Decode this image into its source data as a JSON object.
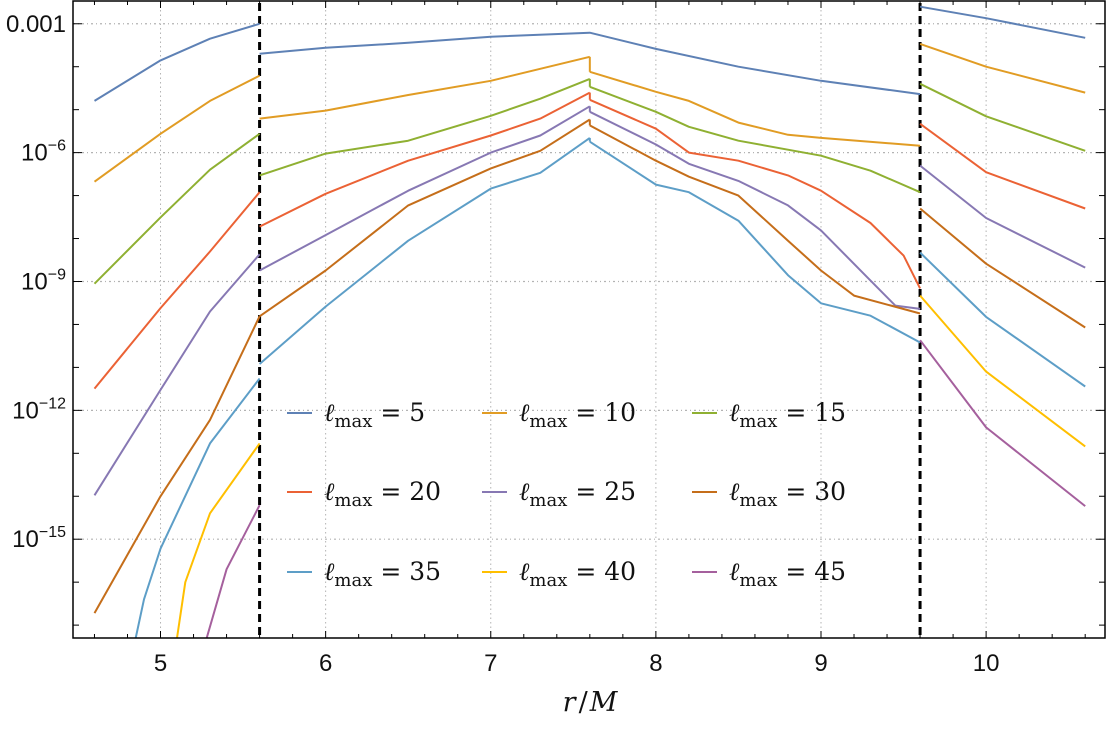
{
  "chart_data": {
    "type": "line",
    "title": "",
    "xlabel": "r/M",
    "xlabel_parts": {
      "r": "r",
      "slash": "/",
      "M": "M"
    },
    "ylabel": "",
    "yscale": "log",
    "xlim": [
      4.47,
      10.72
    ],
    "ylim_log10": [
      -17.3,
      -2.47
    ],
    "grid": true,
    "x_ticks": [
      {
        "value": 5,
        "label": "5"
      },
      {
        "value": 6,
        "label": "6"
      },
      {
        "value": 7,
        "label": "7"
      },
      {
        "value": 8,
        "label": "8"
      },
      {
        "value": 9,
        "label": "9"
      },
      {
        "value": 10,
        "label": "10"
      }
    ],
    "y_ticks": [
      {
        "log10": -3,
        "base": "0.001",
        "exp": ""
      },
      {
        "log10": -6,
        "base": "10",
        "exp": "−6"
      },
      {
        "log10": -9,
        "base": "10",
        "exp": "−9"
      },
      {
        "log10": -12,
        "base": "10",
        "exp": "−12"
      },
      {
        "log10": -15,
        "base": "10",
        "exp": "−15"
      }
    ],
    "vertical_dashed_lines": [
      5.6,
      9.6
    ],
    "legend_position": "lower-center",
    "series": [
      {
        "name": "ℓmax = 5",
        "symbol": "ℓ",
        "sub": "max",
        "rest": "= 5",
        "color": "#5e81b5",
        "segments": [
          [
            [
              4.6,
              1.6e-05
            ],
            [
              5.0,
              0.00014
            ],
            [
              5.3,
              0.00045
            ],
            [
              5.6,
              0.001
            ]
          ],
          [
            [
              5.6,
              0.0002
            ],
            [
              6.0,
              0.000275
            ],
            [
              6.5,
              0.00036
            ],
            [
              7.0,
              0.0005
            ],
            [
              7.6,
              0.00062
            ],
            [
              8.0,
              0.00026
            ],
            [
              8.5,
              0.0001
            ],
            [
              9.0,
              4.7e-05
            ],
            [
              9.6,
              2.3e-05
            ]
          ],
          [
            [
              9.6,
              0.0025
            ],
            [
              10.0,
              0.00135
            ],
            [
              10.6,
              0.00047
            ]
          ]
        ]
      },
      {
        "name": "ℓmax = 10",
        "symbol": "ℓ",
        "sub": "max",
        "rest": "= 10",
        "color": "#e19c24",
        "segments": [
          [
            [
              4.6,
              2.1e-07
            ],
            [
              5.0,
              2.75e-06
            ],
            [
              5.3,
              1.6e-05
            ],
            [
              5.6,
              6.2e-05
            ]
          ],
          [
            [
              5.6,
              6.2e-06
            ],
            [
              6.0,
              9.5e-06
            ],
            [
              6.5,
              2.2e-05
            ],
            [
              7.0,
              4.7e-05
            ],
            [
              7.6,
              0.00017
            ]
          ],
          [
            [
              7.6,
              7.6e-05
            ],
            [
              8.0,
              2.6e-05
            ],
            [
              8.2,
              1.6e-05
            ],
            [
              8.5,
              5e-06
            ],
            [
              8.8,
              2.6e-06
            ],
            [
              9.0,
              2.2e-06
            ],
            [
              9.6,
              1.45e-06
            ]
          ],
          [
            [
              9.6,
              0.00034
            ],
            [
              10.0,
              0.0001
            ],
            [
              10.6,
              2.5e-05
            ]
          ]
        ]
      },
      {
        "name": "ℓmax = 15",
        "symbol": "ℓ",
        "sub": "max",
        "rest": "= 15",
        "color": "#8fb032",
        "segments": [
          [
            [
              4.6,
              8.9e-10
            ],
            [
              5.0,
              3.1e-08
            ],
            [
              5.3,
              4e-07
            ],
            [
              5.6,
              2.75e-06
            ]
          ],
          [
            [
              5.6,
              2.95e-07
            ],
            [
              6.0,
              9.5e-07
            ],
            [
              6.5,
              1.9e-06
            ],
            [
              7.0,
              7.2e-06
            ],
            [
              7.3,
              1.8e-05
            ],
            [
              7.6,
              5.2e-05
            ]
          ],
          [
            [
              7.6,
              3.4e-05
            ],
            [
              8.0,
              8.9e-06
            ],
            [
              8.2,
              4e-06
            ],
            [
              8.5,
              1.9e-06
            ],
            [
              9.0,
              8.5e-07
            ],
            [
              9.3,
              3.8e-07
            ],
            [
              9.6,
              1.2e-07
            ]
          ],
          [
            [
              9.6,
              4e-05
            ],
            [
              10.0,
              7e-06
            ],
            [
              10.6,
              1.1e-06
            ]
          ]
        ]
      },
      {
        "name": "ℓmax = 20",
        "symbol": "ℓ",
        "sub": "max",
        "rest": "= 20",
        "color": "#eb6235",
        "segments": [
          [
            [
              4.6,
              3.2e-12
            ],
            [
              5.0,
              2.4e-10
            ],
            [
              5.3,
              5e-09
            ],
            [
              5.6,
              1.2e-07
            ]
          ],
          [
            [
              5.6,
              1.9e-08
            ],
            [
              6.0,
              1.1e-07
            ],
            [
              6.5,
              6.5e-07
            ],
            [
              7.0,
              2.5e-06
            ],
            [
              7.3,
              6.2e-06
            ],
            [
              7.6,
              2.5e-05
            ]
          ],
          [
            [
              7.6,
              1.7e-05
            ],
            [
              8.0,
              3.6e-06
            ],
            [
              8.2,
              1e-06
            ],
            [
              8.5,
              6.5e-07
            ],
            [
              8.8,
              2.95e-07
            ],
            [
              9.0,
              1.3e-07
            ],
            [
              9.3,
              2.3e-08
            ],
            [
              9.5,
              4e-09
            ],
            [
              9.6,
              6.9e-10
            ]
          ],
          [
            [
              9.6,
              4.7e-06
            ],
            [
              10.0,
              3.5e-07
            ],
            [
              10.6,
              5e-08
            ]
          ]
        ]
      },
      {
        "name": "ℓmax = 25",
        "symbol": "ℓ",
        "sub": "max",
        "rest": "= 25",
        "color": "#8778b3",
        "segments": [
          [
            [
              4.6,
              1.05e-14
            ],
            [
              5.0,
              3e-12
            ],
            [
              5.3,
              2e-10
            ],
            [
              5.6,
              4.3e-09
            ]
          ],
          [
            [
              5.6,
              1.8e-09
            ],
            [
              6.0,
              1.2e-08
            ],
            [
              6.5,
              1.3e-07
            ],
            [
              7.0,
              1e-06
            ],
            [
              7.3,
              2.5e-06
            ],
            [
              7.6,
              1.2e-05
            ]
          ],
          [
            [
              7.6,
              8.9e-06
            ],
            [
              8.0,
              1.55e-06
            ],
            [
              8.2,
              5.5e-07
            ],
            [
              8.5,
              2.2e-07
            ],
            [
              8.8,
              5.9e-08
            ],
            [
              9.0,
              1.55e-08
            ],
            [
              9.3,
              1.05e-09
            ],
            [
              9.45,
              2.75e-10
            ],
            [
              9.6,
              2.3e-10
            ]
          ],
          [
            [
              9.6,
              5e-07
            ],
            [
              10.0,
              3e-08
            ],
            [
              10.6,
              2.1e-09
            ]
          ]
        ]
      },
      {
        "name": "ℓmax = 30",
        "symbol": "ℓ",
        "sub": "max",
        "rest": "= 30",
        "color": "#c56e1a",
        "segments": [
          [
            [
              4.6,
              1.9e-17
            ],
            [
              5.0,
              1e-14
            ],
            [
              5.3,
              6e-13
            ],
            [
              5.6,
              1.55e-10
            ]
          ],
          [
            [
              5.6,
              1.55e-10
            ],
            [
              6.0,
              1.8e-09
            ],
            [
              6.5,
              5.9e-08
            ],
            [
              7.0,
              4.3e-07
            ],
            [
              7.3,
              1.1e-06
            ],
            [
              7.6,
              5.9e-06
            ]
          ],
          [
            [
              7.6,
              4.3e-06
            ],
            [
              8.0,
              6.5e-07
            ],
            [
              8.2,
              2.75e-07
            ],
            [
              8.5,
              1e-07
            ],
            [
              8.8,
              8.9e-09
            ],
            [
              9.0,
              1.8e-09
            ],
            [
              9.2,
              4.7e-10
            ],
            [
              9.6,
              1.8e-10
            ]
          ],
          [
            [
              9.6,
              5e-08
            ],
            [
              10.0,
              2.6e-09
            ],
            [
              10.6,
              8.5e-11
            ]
          ]
        ]
      },
      {
        "name": "ℓmax = 35",
        "symbol": "ℓ",
        "sub": "max",
        "rest": "= 35",
        "color": "#5d9ec7",
        "segments": [
          [
            [
              4.85,
              5e-18
            ],
            [
              4.9,
              4e-17
            ],
            [
              5.0,
              6e-16
            ],
            [
              5.3,
              1.7e-13
            ],
            [
              5.6,
              5.5e-12
            ]
          ],
          [
            [
              5.6,
              1.2e-11
            ],
            [
              6.0,
              2.6e-10
            ],
            [
              6.5,
              8.9e-09
            ],
            [
              7.0,
              1.45e-07
            ],
            [
              7.3,
              3.4e-07
            ],
            [
              7.6,
              2.2e-06
            ]
          ],
          [
            [
              7.6,
              1.8e-06
            ],
            [
              8.0,
              1.8e-07
            ],
            [
              8.2,
              1.2e-07
            ],
            [
              8.5,
              2.6e-08
            ],
            [
              8.8,
              1.4e-09
            ],
            [
              9.0,
              3.1e-10
            ],
            [
              9.3,
              1.6e-10
            ],
            [
              9.6,
              3.8e-11
            ]
          ],
          [
            [
              9.6,
              4.7e-09
            ],
            [
              10.0,
              1.5e-10
            ],
            [
              10.6,
              3.6e-12
            ]
          ]
        ]
      },
      {
        "name": "ℓmax = 40",
        "symbol": "ℓ",
        "sub": "max",
        "rest": "= 40",
        "color": "#ffbf00",
        "segments": [
          [
            [
              5.1,
              5e-18
            ],
            [
              5.15,
              1e-16
            ],
            [
              5.3,
              4e-15
            ],
            [
              5.6,
              1.7e-13
            ]
          ],
          [
            [
              9.6,
              4.7e-10
            ],
            [
              10.0,
              8e-12
            ],
            [
              10.6,
              1.45e-13
            ]
          ]
        ]
      },
      {
        "name": "ℓmax = 45",
        "symbol": "ℓ",
        "sub": "max",
        "rest": "= 45",
        "color": "#a5609d",
        "segments": [
          [
            [
              5.28,
              5e-18
            ],
            [
              5.4,
              2e-16
            ],
            [
              5.6,
              6.2e-15
            ]
          ],
          [
            [
              9.6,
              4.3e-11
            ],
            [
              10.0,
              4e-13
            ],
            [
              10.6,
              5.9e-15
            ]
          ]
        ]
      }
    ]
  }
}
